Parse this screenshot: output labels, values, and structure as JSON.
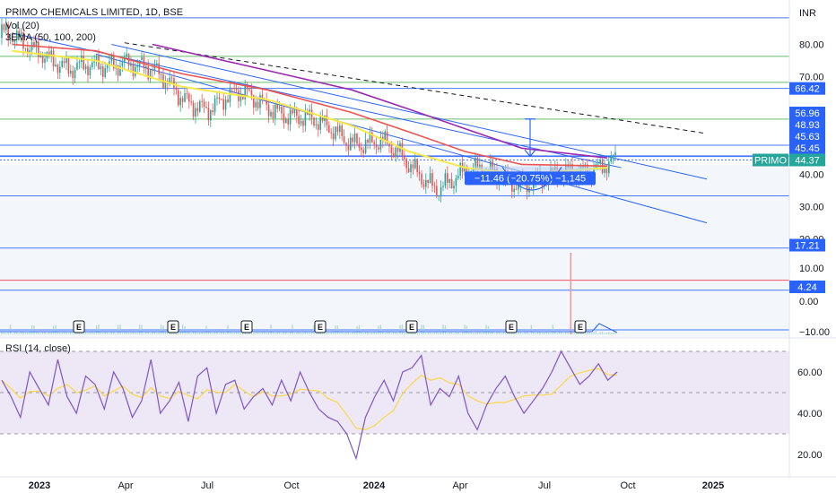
{
  "header": {
    "title": "PRIMO CHEMICALS LIMITED, 1D, BSE",
    "vol_label": "Vol (20)",
    "ema_label": "3EMA (50, 100, 200)",
    "currency": "INR"
  },
  "rsi_label": "RSI (14, close)",
  "measure_label": "−11.46 (−20.75%) −1,145",
  "earnings_marker": "E",
  "colors": {
    "up": "#26a69a",
    "down": "#ef5350",
    "blue_line": "#2962ff",
    "green_line": "#4caf50",
    "red_line": "#f23645",
    "ema50": "#f7e84a",
    "ema100": "#ef5350",
    "ema200": "#9c27b0",
    "rsi": "#7e57c2",
    "rsi_ma": "#f9d949",
    "rsi_band": "#ede7f6"
  },
  "chart_data": {
    "type": "candlestick",
    "symbol": "PRIMO",
    "interval": "1D",
    "exchange": "BSE",
    "last_price": 44.37,
    "y_ticks": [
      "80.00",
      "70.00",
      "40.00",
      "30.00",
      "20.00",
      "10.00",
      "0.00",
      "−10.00"
    ],
    "x_ticks": [
      "2023",
      "Apr",
      "Jul",
      "Oct",
      "2024",
      "Apr",
      "Jul",
      "Oct",
      "2025"
    ],
    "price_badges": [
      {
        "label": "66.42",
        "kind": "level"
      },
      {
        "label": "56.96",
        "kind": "level"
      },
      {
        "label": "48.93",
        "kind": "level"
      },
      {
        "label": "45.63",
        "kind": "level"
      },
      {
        "label": "45.45",
        "kind": "level"
      },
      {
        "label": "PRIMO",
        "kind": "symbol"
      },
      {
        "label": "44.37",
        "kind": "last"
      },
      {
        "label": "17.21",
        "kind": "level"
      },
      {
        "label": "4.24",
        "kind": "level"
      }
    ],
    "horizontal_levels": [
      88.2,
      76.3,
      68.3,
      66.42,
      56.96,
      48.93,
      45.63,
      45.45,
      44.37,
      33.3,
      17.21,
      7.3,
      4.24,
      -8.0
    ],
    "trendlines": [
      {
        "from": [
          "2022-12-15",
          83.5
        ],
        "to": [
          "2024-09-30",
          42.0
        ],
        "style": "solid"
      },
      {
        "from": [
          "2023-03-15",
          77.0
        ],
        "to": [
          "2024-12-31",
          25.0
        ],
        "style": "solid"
      },
      {
        "from": [
          "2023-04-01",
          80.0
        ],
        "to": [
          "2024-12-31",
          38.5
        ],
        "style": "solid"
      },
      {
        "from": [
          "2023-04-15",
          80.5
        ],
        "to": [
          "2024-12-31",
          52.5
        ],
        "style": "dashed"
      }
    ],
    "close_series": [
      [
        "2022-12",
        82
      ],
      [
        "2023-01",
        79
      ],
      [
        "2023-02",
        71
      ],
      [
        "2023-03",
        73
      ],
      [
        "2023-04",
        76
      ],
      [
        "2023-05",
        71
      ],
      [
        "2023-06",
        64
      ],
      [
        "2023-07",
        61
      ],
      [
        "2023-08",
        64
      ],
      [
        "2023-09",
        62
      ],
      [
        "2023-10",
        58
      ],
      [
        "2023-11",
        54
      ],
      [
        "2023-12",
        51
      ],
      [
        "2024-01",
        50
      ],
      [
        "2024-02",
        42
      ],
      [
        "2024-03",
        37
      ],
      [
        "2024-04",
        40
      ],
      [
        "2024-05",
        40
      ],
      [
        "2024-06",
        38
      ],
      [
        "2024-07",
        38
      ],
      [
        "2024-08",
        41
      ],
      [
        "2024-09",
        44.37
      ]
    ],
    "ema50": [
      [
        "2022-12",
        78
      ],
      [
        "2023-03",
        75
      ],
      [
        "2023-06",
        67
      ],
      [
        "2023-09",
        63
      ],
      [
        "2023-12",
        55
      ],
      [
        "2024-02",
        47
      ],
      [
        "2024-04",
        42
      ],
      [
        "2024-06",
        40
      ],
      [
        "2024-09",
        42
      ]
    ],
    "ema100": [
      [
        "2022-12",
        80
      ],
      [
        "2023-03",
        78
      ],
      [
        "2023-06",
        71
      ],
      [
        "2023-09",
        66
      ],
      [
        "2023-12",
        59
      ],
      [
        "2024-02",
        53
      ],
      [
        "2024-04",
        47
      ],
      [
        "2024-06",
        43
      ],
      [
        "2024-09",
        42.5
      ]
    ],
    "ema200": [
      [
        "2023-05",
        80
      ],
      [
        "2023-09",
        72
      ],
      [
        "2023-12",
        66
      ],
      [
        "2024-02",
        60
      ],
      [
        "2024-04",
        54
      ],
      [
        "2024-06",
        48
      ],
      [
        "2024-09",
        45
      ]
    ],
    "rsi": {
      "period": 14,
      "ticks": [
        "60.00",
        "40.00",
        "20.00"
      ],
      "bands": [
        30,
        70
      ],
      "values": [
        56,
        48,
        38,
        60,
        52,
        44,
        66,
        48,
        40,
        58,
        54,
        42,
        60,
        52,
        38,
        46,
        66,
        40,
        46,
        55,
        36,
        58,
        62,
        40,
        54,
        56,
        42,
        48,
        52,
        44,
        56,
        46,
        60,
        50,
        42,
        38,
        36,
        30,
        18,
        38,
        48,
        56,
        46,
        60,
        62,
        68,
        44,
        52,
        48,
        58,
        40,
        32,
        44,
        52,
        58,
        48,
        40,
        46,
        52,
        60,
        70,
        62,
        54,
        58,
        64,
        56,
        60
      ]
    },
    "earnings_dates": [
      "2023-01-10",
      "2023-04-20",
      "2023-07-25",
      "2023-10-20",
      "2024-01-28",
      "2024-05-15",
      "2024-08-10"
    ]
  }
}
